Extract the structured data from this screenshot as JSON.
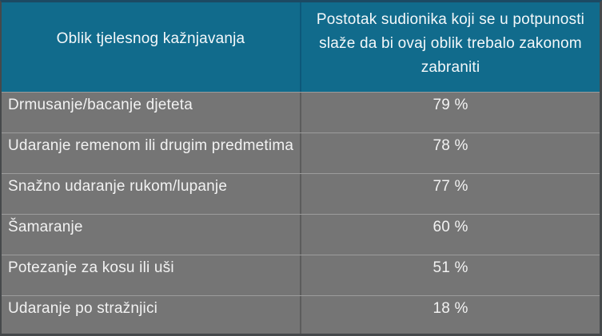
{
  "table": {
    "header": {
      "col1": "Oblik tjelesnog kažnjavanja",
      "col2": "Postotak sudionika koji se u potpunosti slaže da bi ovaj oblik trebalo zakonom zabraniti"
    },
    "rows": [
      {
        "label": "Drmusanje/bacanje djeteta",
        "value": "79 %"
      },
      {
        "label": "Udaranje remenom ili drugim predmetima",
        "value": "78 %"
      },
      {
        "label": "Snažno udaranje rukom/lupanje",
        "value": "77 %"
      },
      {
        "label": "Šamaranje",
        "value": "60 %"
      },
      {
        "label": "Potezanje za kosu ili uši",
        "value": "51 %"
      },
      {
        "label": "Udaranje po stražnjici",
        "value": "18 %"
      }
    ],
    "colors": {
      "header_bg": "#116b8c",
      "header_divider": "#0d587a",
      "row_bg": "#757575",
      "row_separator": "#9c9c9c",
      "body_divider": "#5c5c5c",
      "outer_border": "#46494b",
      "text": "#ffffff"
    }
  },
  "chart_data": {
    "type": "table",
    "title": "",
    "columns": [
      "Oblik tjelesnog kažnjavanja",
      "Postotak sudionika koji se u potpunosti slaže da bi ovaj oblik trebalo zakonom zabraniti"
    ],
    "categories": [
      "Drmusanje/bacanje djeteta",
      "Udaranje remenom ili drugim predmetima",
      "Snažno udaranje rukom/lupanje",
      "Šamaranje",
      "Potezanje za kosu ili uši",
      "Udaranje po stražnjici"
    ],
    "values": [
      79,
      78,
      77,
      60,
      51,
      18
    ],
    "value_unit": "%"
  }
}
